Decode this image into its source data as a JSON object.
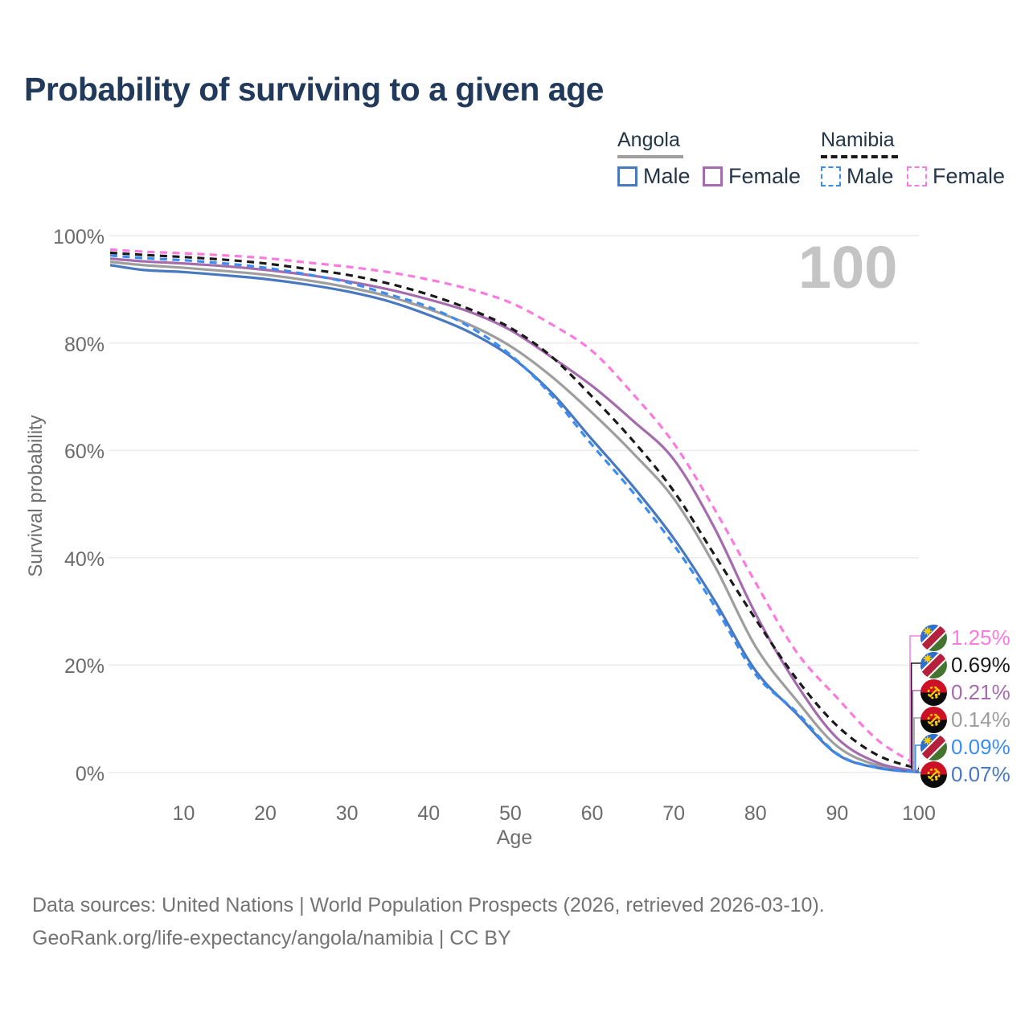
{
  "title": "Probability of surviving to a given age",
  "watermark": "100",
  "colors": {
    "title_text": "#21395a",
    "axis_text": "#6b6b6b",
    "gridline": "#ebebeb",
    "watermark": "#c4c4c4",
    "footer_text": "#737373"
  },
  "legend": {
    "groups": [
      {
        "country": "Angola",
        "line_style": "solid",
        "underline_color": "#9e9e9e",
        "items": [
          {
            "label": "Male",
            "color": "#4878c0",
            "dash": "solid"
          },
          {
            "label": "Female",
            "color": "#a56cad",
            "dash": "solid"
          }
        ]
      },
      {
        "country": "Namibia",
        "line_style": "dashed",
        "underline_color": "#1a1a1a",
        "items": [
          {
            "label": "Male",
            "color": "#3b8df2",
            "dash": "dashed"
          },
          {
            "label": "Female",
            "color": "#fa7be0",
            "dash": "dashed"
          }
        ]
      }
    ]
  },
  "chart_data": {
    "type": "line",
    "title": "Probability of surviving to a given age",
    "xlabel": "Age",
    "ylabel": "Survival probability",
    "xlim": [
      1,
      100
    ],
    "ylim": [
      0,
      100
    ],
    "grid": true,
    "legend_position": "top-right",
    "x_ticks": [
      "10",
      "20",
      "30",
      "40",
      "50",
      "60",
      "70",
      "80",
      "90",
      "100"
    ],
    "y_ticks": [
      0,
      20,
      40,
      60,
      80,
      100
    ],
    "y_tick_labels": [
      "0%",
      "20%",
      "40%",
      "60%",
      "80%",
      "100%"
    ],
    "x": [
      1,
      5,
      10,
      15,
      20,
      25,
      30,
      35,
      40,
      45,
      50,
      55,
      60,
      65,
      70,
      75,
      80,
      85,
      90,
      95,
      100
    ],
    "series": [
      {
        "key": "angola-both",
        "name": "Angola (both sexes)",
        "country": "Angola",
        "color": "#9e9e9e",
        "dash": "solid",
        "values": [
          95.1,
          94.5,
          94.0,
          93.4,
          92.7,
          91.7,
          90.4,
          88.7,
          86.3,
          83.4,
          79.4,
          73.8,
          67.0,
          59.5,
          51.0,
          38.5,
          23.5,
          13.5,
          4.9,
          1.3,
          0.14
        ]
      },
      {
        "key": "angola-female",
        "name": "Angola Female",
        "country": "Angola",
        "color": "#a56cad",
        "dash": "solid",
        "values": [
          95.7,
          95.2,
          94.8,
          94.3,
          93.6,
          92.7,
          91.5,
          90.0,
          88.1,
          85.8,
          82.4,
          77.4,
          72.0,
          65.5,
          58.3,
          45.5,
          29.6,
          16.5,
          6.4,
          1.8,
          0.21
        ]
      },
      {
        "key": "angola-male",
        "name": "Angola Male",
        "country": "Angola",
        "color": "#4878c0",
        "dash": "solid",
        "values": [
          94.5,
          93.6,
          93.2,
          92.6,
          91.9,
          90.9,
          89.6,
          87.8,
          85.2,
          82.0,
          77.5,
          70.8,
          62.0,
          53.3,
          43.6,
          32.0,
          19.0,
          11.0,
          3.4,
          0.85,
          0.07
        ]
      },
      {
        "key": "namibia-male",
        "name": "Namibia Male",
        "country": "Namibia",
        "color": "#3b8df2",
        "dash": "dashed",
        "values": [
          96.3,
          95.8,
          95.4,
          94.8,
          94.0,
          92.8,
          91.3,
          89.1,
          86.7,
          83.0,
          77.8,
          70.3,
          61.0,
          52.2,
          42.4,
          31.0,
          18.3,
          11.3,
          3.5,
          0.9,
          0.09
        ]
      },
      {
        "key": "namibia-both",
        "name": "Namibia (both sexes)",
        "country": "Namibia",
        "color": "#1a1a1a",
        "dash": "dashed",
        "values": [
          96.8,
          96.4,
          96.0,
          95.5,
          94.8,
          93.8,
          92.7,
          91.1,
          89.0,
          86.3,
          82.8,
          77.5,
          70.0,
          61.8,
          52.4,
          40.5,
          28.6,
          17.5,
          8.7,
          3.2,
          0.69
        ]
      },
      {
        "key": "namibia-female",
        "name": "Namibia Female",
        "country": "Namibia",
        "color": "#fa7be0",
        "dash": "dashed",
        "values": [
          97.4,
          97.0,
          96.7,
          96.3,
          95.8,
          95.0,
          94.2,
          93.2,
          91.8,
          90.0,
          87.5,
          83.5,
          78.5,
          70.5,
          61.3,
          49.0,
          35.4,
          22.5,
          13.9,
          6.0,
          1.25
        ]
      }
    ],
    "end_labels": [
      {
        "flag": "namibia",
        "text": "1.25%",
        "value": 1.25,
        "color": "#fa7be0"
      },
      {
        "flag": "namibia",
        "text": "0.69%",
        "value": 0.69,
        "color": "#1a1a1a"
      },
      {
        "flag": "angola",
        "text": "0.21%",
        "value": 0.21,
        "color": "#a56cad"
      },
      {
        "flag": "angola",
        "text": "0.14%",
        "value": 0.14,
        "color": "#9e9e9e"
      },
      {
        "flag": "namibia",
        "text": "0.09%",
        "value": 0.09,
        "color": "#3b8df2"
      },
      {
        "flag": "angola",
        "text": "0.07%",
        "value": 0.07,
        "color": "#4878c0"
      }
    ]
  },
  "footer": {
    "line1": "Data sources: United Nations | World Population Prospects (2026, retrieved 2026-03-10).",
    "line2": "GeoRank.org/life-expectancy/angola/namibia | CC BY"
  }
}
